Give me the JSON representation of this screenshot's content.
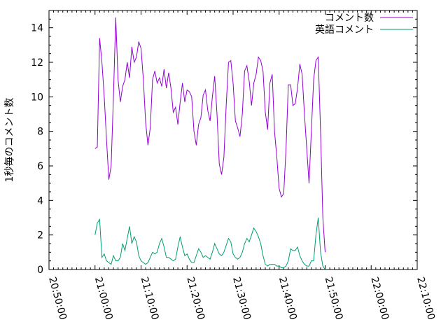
{
  "chart_data": {
    "type": "line",
    "title": "",
    "xlabel": "",
    "ylabel": "1秒毎のコメント数",
    "xlim": [
      "20:50:00",
      "22:10:00"
    ],
    "ylim": [
      0,
      15
    ],
    "grid": false,
    "legend_position": "top-right",
    "x_tick_labels": [
      "20:50:00",
      "21:00:00",
      "21:10:00",
      "21:20:00",
      "21:30:00",
      "21:40:00",
      "21:50:00",
      "22:00:00",
      "22:10:00"
    ],
    "y_ticks": [
      0,
      2,
      4,
      6,
      8,
      10,
      12,
      14
    ],
    "series": [
      {
        "name": "コメント数",
        "color": "#9400d3",
        "points": [
          [
            "21:00:00",
            7.0
          ],
          [
            "21:00:30",
            7.1
          ],
          [
            "21:01:00",
            13.4
          ],
          [
            "21:01:30",
            12.0
          ],
          [
            "21:02:00",
            10.0
          ],
          [
            "21:02:30",
            7.5
          ],
          [
            "21:03:00",
            5.2
          ],
          [
            "21:03:30",
            6.0
          ],
          [
            "21:04:00",
            10.0
          ],
          [
            "21:04:30",
            14.6
          ],
          [
            "21:05:00",
            11.0
          ],
          [
            "21:05:30",
            9.7
          ],
          [
            "21:06:00",
            10.6
          ],
          [
            "21:06:30",
            11.0
          ],
          [
            "21:07:00",
            12.0
          ],
          [
            "21:07:30",
            11.1
          ],
          [
            "21:08:00",
            12.9
          ],
          [
            "21:08:30",
            12.0
          ],
          [
            "21:09:00",
            12.3
          ],
          [
            "21:09:30",
            13.2
          ],
          [
            "21:10:00",
            12.8
          ],
          [
            "21:10:30",
            11.0
          ],
          [
            "21:11:00",
            8.5
          ],
          [
            "21:11:30",
            7.2
          ],
          [
            "21:12:00",
            8.2
          ],
          [
            "21:12:30",
            11.0
          ],
          [
            "21:13:00",
            11.5
          ],
          [
            "21:13:30",
            10.8
          ],
          [
            "21:14:00",
            11.1
          ],
          [
            "21:14:30",
            10.6
          ],
          [
            "21:15:00",
            11.6
          ],
          [
            "21:15:30",
            10.5
          ],
          [
            "21:16:00",
            11.4
          ],
          [
            "21:16:30",
            10.5
          ],
          [
            "21:17:00",
            9.1
          ],
          [
            "21:17:30",
            9.4
          ],
          [
            "21:18:00",
            8.4
          ],
          [
            "21:18:30",
            9.7
          ],
          [
            "21:19:00",
            10.8
          ],
          [
            "21:19:30",
            9.7
          ],
          [
            "21:20:00",
            10.4
          ],
          [
            "21:20:30",
            10.3
          ],
          [
            "21:21:00",
            10.0
          ],
          [
            "21:21:30",
            8.0
          ],
          [
            "21:22:00",
            7.2
          ],
          [
            "21:22:30",
            8.4
          ],
          [
            "21:23:00",
            8.8
          ],
          [
            "21:23:30",
            10.1
          ],
          [
            "21:24:00",
            10.4
          ],
          [
            "21:24:30",
            9.2
          ],
          [
            "21:25:00",
            8.6
          ],
          [
            "21:25:30",
            10.0
          ],
          [
            "21:26:00",
            11.2
          ],
          [
            "21:26:30",
            9.0
          ],
          [
            "21:27:00",
            6.1
          ],
          [
            "21:27:30",
            5.5
          ],
          [
            "21:28:00",
            6.5
          ],
          [
            "21:28:30",
            9.5
          ],
          [
            "21:29:00",
            12.0
          ],
          [
            "21:29:30",
            12.1
          ],
          [
            "21:30:00",
            10.8
          ],
          [
            "21:30:30",
            8.6
          ],
          [
            "21:31:00",
            8.2
          ],
          [
            "21:31:30",
            7.7
          ],
          [
            "21:32:00",
            9.0
          ],
          [
            "21:32:30",
            11.5
          ],
          [
            "21:33:00",
            11.8
          ],
          [
            "21:33:30",
            10.9
          ],
          [
            "21:34:00",
            9.5
          ],
          [
            "21:34:30",
            10.8
          ],
          [
            "21:35:00",
            11.3
          ],
          [
            "21:35:30",
            12.3
          ],
          [
            "21:36:00",
            12.1
          ],
          [
            "21:36:30",
            11.5
          ],
          [
            "21:37:00",
            9.1
          ],
          [
            "21:37:30",
            8.1
          ],
          [
            "21:38:00",
            10.8
          ],
          [
            "21:38:30",
            11.3
          ],
          [
            "21:39:00",
            8.0
          ],
          [
            "21:39:30",
            6.5
          ],
          [
            "21:40:00",
            4.7
          ],
          [
            "21:40:30",
            4.2
          ],
          [
            "21:41:00",
            4.4
          ],
          [
            "21:41:30",
            7.0
          ],
          [
            "21:42:00",
            10.7
          ],
          [
            "21:42:30",
            10.7
          ],
          [
            "21:43:00",
            9.5
          ],
          [
            "21:43:30",
            9.6
          ],
          [
            "21:44:00",
            10.5
          ],
          [
            "21:44:30",
            11.9
          ],
          [
            "21:45:00",
            11.3
          ],
          [
            "21:45:30",
            9.0
          ],
          [
            "21:46:00",
            7.0
          ],
          [
            "21:46:30",
            5.0
          ],
          [
            "21:47:00",
            8.0
          ],
          [
            "21:47:30",
            11.0
          ],
          [
            "21:48:00",
            12.1
          ],
          [
            "21:48:30",
            12.3
          ],
          [
            "21:49:00",
            8.0
          ],
          [
            "21:49:30",
            3.0
          ],
          [
            "21:50:00",
            1.0
          ]
        ]
      },
      {
        "name": "英語コメント",
        "color": "#009e73",
        "points": [
          [
            "21:00:00",
            2.0
          ],
          [
            "21:00:30",
            2.7
          ],
          [
            "21:01:00",
            2.9
          ],
          [
            "21:01:30",
            0.7
          ],
          [
            "21:02:00",
            0.9
          ],
          [
            "21:02:30",
            0.5
          ],
          [
            "21:03:00",
            0.4
          ],
          [
            "21:03:30",
            0.3
          ],
          [
            "21:04:00",
            0.8
          ],
          [
            "21:04:30",
            0.5
          ],
          [
            "21:05:00",
            0.5
          ],
          [
            "21:05:30",
            0.7
          ],
          [
            "21:06:00",
            1.5
          ],
          [
            "21:06:30",
            1.1
          ],
          [
            "21:07:00",
            1.8
          ],
          [
            "21:07:30",
            2.5
          ],
          [
            "21:08:00",
            1.5
          ],
          [
            "21:08:30",
            1.9
          ],
          [
            "21:09:00",
            1.6
          ],
          [
            "21:09:30",
            0.8
          ],
          [
            "21:10:00",
            0.5
          ],
          [
            "21:10:30",
            0.4
          ],
          [
            "21:11:00",
            0.3
          ],
          [
            "21:11:30",
            0.4
          ],
          [
            "21:12:00",
            0.7
          ],
          [
            "21:12:30",
            1.0
          ],
          [
            "21:13:00",
            0.9
          ],
          [
            "21:13:30",
            1.0
          ],
          [
            "21:14:00",
            1.5
          ],
          [
            "21:14:30",
            1.8
          ],
          [
            "21:15:00",
            1.3
          ],
          [
            "21:15:30",
            0.7
          ],
          [
            "21:16:00",
            0.7
          ],
          [
            "21:16:30",
            0.6
          ],
          [
            "21:17:00",
            0.5
          ],
          [
            "21:17:30",
            0.6
          ],
          [
            "21:18:00",
            1.3
          ],
          [
            "21:18:30",
            1.9
          ],
          [
            "21:19:00",
            1.3
          ],
          [
            "21:19:30",
            0.8
          ],
          [
            "21:20:00",
            0.9
          ],
          [
            "21:20:30",
            0.6
          ],
          [
            "21:21:00",
            0.4
          ],
          [
            "21:21:30",
            0.4
          ],
          [
            "21:22:00",
            0.8
          ],
          [
            "21:22:30",
            1.2
          ],
          [
            "21:23:00",
            1.0
          ],
          [
            "21:23:30",
            0.7
          ],
          [
            "21:24:00",
            0.8
          ],
          [
            "21:24:30",
            0.7
          ],
          [
            "21:25:00",
            0.6
          ],
          [
            "21:25:30",
            1.0
          ],
          [
            "21:26:00",
            1.5
          ],
          [
            "21:26:30",
            1.2
          ],
          [
            "21:27:00",
            0.9
          ],
          [
            "21:27:30",
            0.8
          ],
          [
            "21:28:00",
            1.0
          ],
          [
            "21:28:30",
            1.4
          ],
          [
            "21:29:00",
            1.8
          ],
          [
            "21:29:30",
            1.6
          ],
          [
            "21:30:00",
            0.9
          ],
          [
            "21:30:30",
            0.7
          ],
          [
            "21:31:00",
            0.6
          ],
          [
            "21:31:30",
            0.7
          ],
          [
            "21:32:00",
            1.0
          ],
          [
            "21:32:30",
            1.5
          ],
          [
            "21:33:00",
            1.8
          ],
          [
            "21:33:30",
            1.6
          ],
          [
            "21:34:00",
            2.0
          ],
          [
            "21:34:30",
            2.4
          ],
          [
            "21:35:00",
            2.2
          ],
          [
            "21:35:30",
            1.9
          ],
          [
            "21:36:00",
            1.5
          ],
          [
            "21:36:30",
            0.8
          ],
          [
            "21:37:00",
            0.3
          ],
          [
            "21:37:30",
            0.2
          ],
          [
            "21:38:00",
            0.3
          ],
          [
            "21:38:30",
            0.3
          ],
          [
            "21:39:00",
            0.3
          ],
          [
            "21:39:30",
            0.2
          ],
          [
            "21:40:00",
            0.2
          ],
          [
            "21:40:30",
            0.1
          ],
          [
            "21:41:00",
            0.1
          ],
          [
            "21:41:30",
            0.2
          ],
          [
            "21:42:00",
            0.5
          ],
          [
            "21:42:30",
            1.2
          ],
          [
            "21:43:00",
            1.1
          ],
          [
            "21:43:30",
            1.1
          ],
          [
            "21:44:00",
            1.3
          ],
          [
            "21:44:30",
            0.8
          ],
          [
            "21:45:00",
            0.5
          ],
          [
            "21:45:30",
            0.3
          ],
          [
            "21:46:00",
            0.2
          ],
          [
            "21:46:30",
            0.2
          ],
          [
            "21:47:00",
            0.5
          ],
          [
            "21:47:30",
            0.5
          ],
          [
            "21:48:00",
            2.0
          ],
          [
            "21:48:30",
            3.0
          ],
          [
            "21:49:00",
            1.0
          ],
          [
            "21:49:30",
            0.2
          ],
          [
            "21:50:00",
            0.0
          ]
        ]
      }
    ]
  }
}
